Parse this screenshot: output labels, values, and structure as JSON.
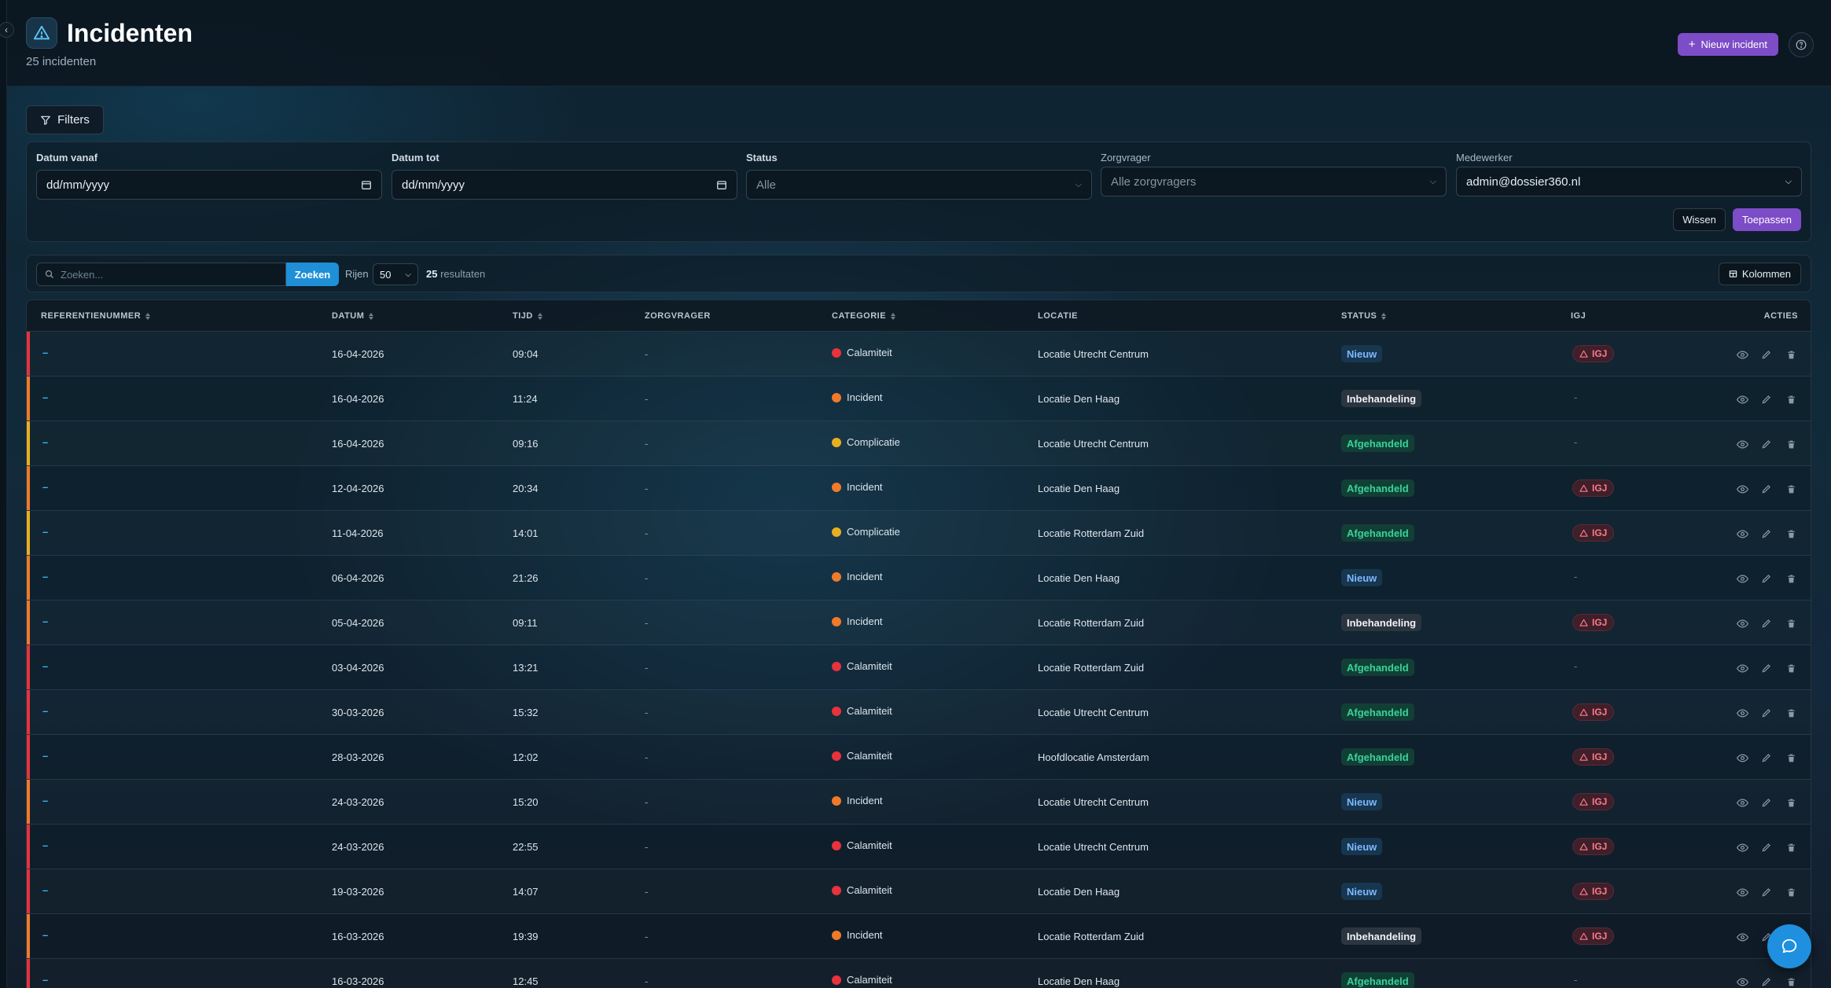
{
  "header": {
    "title": "Incidenten",
    "subtitle": "25 incidenten",
    "new_button": "Nieuw incident"
  },
  "filters": {
    "toggle_label": "Filters",
    "date_from": {
      "label": "Datum vanaf",
      "placeholder": "dd/mm/yyyy"
    },
    "date_to": {
      "label": "Datum tot",
      "placeholder": "dd/mm/yyyy"
    },
    "status": {
      "label": "Status",
      "value": "Alle"
    },
    "client": {
      "label": "Zorgvrager",
      "value": "Alle zorgvragers"
    },
    "employee": {
      "label": "Medewerker",
      "value": "admin@dossier360.nl"
    },
    "clear_label": "Wissen",
    "apply_label": "Toepassen"
  },
  "toolbar": {
    "search_placeholder": "Zoeken...",
    "search_button": "Zoeken",
    "rows_label": "Rijen",
    "rows_value": "50",
    "results_count": "25",
    "results_label": "resultaten",
    "columns_button": "Kolommen"
  },
  "table": {
    "columns": {
      "ref": "REFERENTIENUMMER",
      "date": "DATUM",
      "time": "TIJD",
      "client": "ZORGVRAGER",
      "category": "CATEGORIE",
      "location": "LOCATIE",
      "status": "STATUS",
      "igj": "IGJ",
      "actions": "ACTIES"
    },
    "igj_label": "IGJ",
    "rows": [
      {
        "ref": "–",
        "date": "16-04-2026",
        "time": "09:04",
        "client": "-",
        "category": "Calamiteit",
        "location": "Locatie Utrecht Centrum",
        "status": "Nieuw",
        "igj": true
      },
      {
        "ref": "–",
        "date": "16-04-2026",
        "time": "11:24",
        "client": "-",
        "category": "Incident",
        "location": "Locatie Den Haag",
        "status": "Inbehandeling",
        "igj": false
      },
      {
        "ref": "–",
        "date": "16-04-2026",
        "time": "09:16",
        "client": "-",
        "category": "Complicatie",
        "location": "Locatie Utrecht Centrum",
        "status": "Afgehandeld",
        "igj": false
      },
      {
        "ref": "–",
        "date": "12-04-2026",
        "time": "20:34",
        "client": "-",
        "category": "Incident",
        "location": "Locatie Den Haag",
        "status": "Afgehandeld",
        "igj": true
      },
      {
        "ref": "–",
        "date": "11-04-2026",
        "time": "14:01",
        "client": "-",
        "category": "Complicatie",
        "location": "Locatie Rotterdam Zuid",
        "status": "Afgehandeld",
        "igj": true
      },
      {
        "ref": "–",
        "date": "06-04-2026",
        "time": "21:26",
        "client": "-",
        "category": "Incident",
        "location": "Locatie Den Haag",
        "status": "Nieuw",
        "igj": false
      },
      {
        "ref": "–",
        "date": "05-04-2026",
        "time": "09:11",
        "client": "-",
        "category": "Incident",
        "location": "Locatie Rotterdam Zuid",
        "status": "Inbehandeling",
        "igj": true
      },
      {
        "ref": "–",
        "date": "03-04-2026",
        "time": "13:21",
        "client": "-",
        "category": "Calamiteit",
        "location": "Locatie Rotterdam Zuid",
        "status": "Afgehandeld",
        "igj": false
      },
      {
        "ref": "–",
        "date": "30-03-2026",
        "time": "15:32",
        "client": "-",
        "category": "Calamiteit",
        "location": "Locatie Utrecht Centrum",
        "status": "Afgehandeld",
        "igj": true
      },
      {
        "ref": "–",
        "date": "28-03-2026",
        "time": "12:02",
        "client": "-",
        "category": "Calamiteit",
        "location": "Hoofdlocatie Amsterdam",
        "status": "Afgehandeld",
        "igj": true
      },
      {
        "ref": "–",
        "date": "24-03-2026",
        "time": "15:20",
        "client": "-",
        "category": "Incident",
        "location": "Locatie Utrecht Centrum",
        "status": "Nieuw",
        "igj": true
      },
      {
        "ref": "–",
        "date": "24-03-2026",
        "time": "22:55",
        "client": "-",
        "category": "Calamiteit",
        "location": "Locatie Utrecht Centrum",
        "status": "Nieuw",
        "igj": true
      },
      {
        "ref": "–",
        "date": "19-03-2026",
        "time": "14:07",
        "client": "-",
        "category": "Calamiteit",
        "location": "Locatie Den Haag",
        "status": "Nieuw",
        "igj": true
      },
      {
        "ref": "–",
        "date": "16-03-2026",
        "time": "19:39",
        "client": "-",
        "category": "Incident",
        "location": "Locatie Rotterdam Zuid",
        "status": "Inbehandeling",
        "igj": true
      },
      {
        "ref": "–",
        "date": "16-03-2026",
        "time": "12:45",
        "client": "-",
        "category": "Calamiteit",
        "location": "Locatie Den Haag",
        "status": "Afgehandeld",
        "igj": false
      }
    ]
  },
  "colors": {
    "Calamiteit": "#e8323c",
    "Incident": "#f07a2a",
    "Complicatie": "#e8b020",
    "accent": "#7d4cc7",
    "search": "#1f8fd8"
  },
  "icons": {
    "title": "warning-triangle-icon",
    "help": "help-circle-icon",
    "chat": "chat-bubble-icon"
  }
}
